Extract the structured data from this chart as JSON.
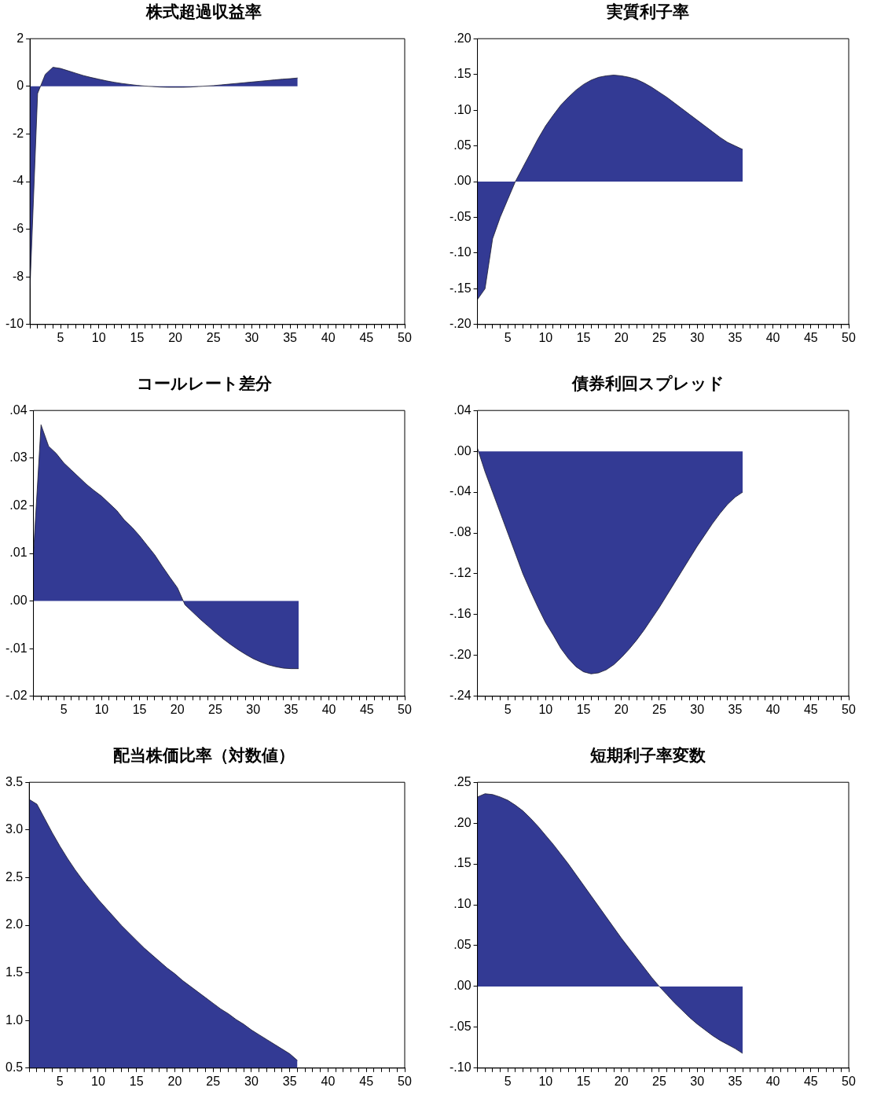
{
  "chart_data": [
    {
      "type": "area",
      "title": "株式超過収益率",
      "x": [
        1,
        2,
        3,
        4,
        5,
        6,
        7,
        8,
        9,
        10,
        11,
        12,
        13,
        14,
        15,
        16,
        17,
        18,
        19,
        20,
        21,
        22,
        23,
        24,
        25,
        26,
        27,
        28,
        29,
        30,
        31,
        32,
        33,
        34,
        35,
        36
      ],
      "series": [
        {
          "color": "#333a94",
          "values": [
            -8.5,
            -0.3,
            0.5,
            0.8,
            0.75,
            0.65,
            0.55,
            0.45,
            0.37,
            0.3,
            0.23,
            0.17,
            0.12,
            0.08,
            0.04,
            0.01,
            -0.01,
            -0.03,
            -0.04,
            -0.04,
            -0.04,
            -0.03,
            -0.01,
            0.01,
            0.03,
            0.06,
            0.09,
            0.12,
            0.15,
            0.18,
            0.21,
            0.24,
            0.27,
            0.3,
            0.32,
            0.35
          ]
        }
      ],
      "xlim": [
        1,
        50
      ],
      "xticks": [
        {
          "value": 1,
          "label": null
        },
        {
          "value": 2,
          "label": null
        },
        {
          "value": 3,
          "label": null
        },
        {
          "value": 4,
          "label": null
        },
        5,
        {
          "value": 6,
          "label": null
        },
        {
          "value": 7,
          "label": null
        },
        {
          "value": 8,
          "label": null
        },
        {
          "value": 9,
          "label": null
        },
        10,
        {
          "value": 11,
          "label": null
        },
        {
          "value": 12,
          "label": null
        },
        {
          "value": 13,
          "label": null
        },
        {
          "value": 14,
          "label": null
        },
        15,
        {
          "value": 16,
          "label": null
        },
        {
          "value": 17,
          "label": null
        },
        {
          "value": 18,
          "label": null
        },
        {
          "value": 19,
          "label": null
        },
        20,
        {
          "value": 21,
          "label": null
        },
        {
          "value": 22,
          "label": null
        },
        {
          "value": 23,
          "label": null
        },
        {
          "value": 24,
          "label": null
        },
        25,
        {
          "value": 26,
          "label": null
        },
        {
          "value": 27,
          "label": null
        },
        {
          "value": 28,
          "label": null
        },
        {
          "value": 29,
          "label": null
        },
        30,
        {
          "value": 31,
          "label": null
        },
        {
          "value": 32,
          "label": null
        },
        {
          "value": 33,
          "label": null
        },
        {
          "value": 34,
          "label": null
        },
        35,
        {
          "value": 36,
          "label": null
        },
        {
          "value": 37,
          "label": null
        },
        {
          "value": 38,
          "label": null
        },
        {
          "value": 39,
          "label": null
        },
        40,
        {
          "value": 41,
          "label": null
        },
        {
          "value": 42,
          "label": null
        },
        {
          "value": 43,
          "label": null
        },
        {
          "value": 44,
          "label": null
        },
        45,
        {
          "value": 46,
          "label": null
        },
        {
          "value": 47,
          "label": null
        },
        {
          "value": 48,
          "label": null
        },
        {
          "value": 49,
          "label": null
        },
        50
      ],
      "ylim": [
        -10,
        2
      ],
      "yticks": [
        -10,
        -8,
        -6,
        -4,
        -2,
        0,
        2
      ],
      "grid": false,
      "legend": false
    },
    {
      "type": "area",
      "title": "実質利子率",
      "x": [
        1,
        2,
        3,
        4,
        5,
        6,
        7,
        8,
        9,
        10,
        11,
        12,
        13,
        14,
        15,
        16,
        17,
        18,
        19,
        20,
        21,
        22,
        23,
        24,
        25,
        26,
        27,
        28,
        29,
        30,
        31,
        32,
        33,
        34,
        35,
        36
      ],
      "series": [
        {
          "color": "#333a94",
          "values": [
            -0.165,
            -0.15,
            -0.08,
            -0.05,
            -0.025,
            0.0,
            0.02,
            0.04,
            0.06,
            0.078,
            0.093,
            0.107,
            0.118,
            0.128,
            0.136,
            0.142,
            0.146,
            0.148,
            0.149,
            0.148,
            0.146,
            0.143,
            0.138,
            0.132,
            0.125,
            0.118,
            0.11,
            0.102,
            0.094,
            0.086,
            0.078,
            0.07,
            0.062,
            0.055,
            0.05,
            0.045
          ]
        }
      ],
      "xlim": [
        1,
        50
      ],
      "xticks": [
        {
          "value": 1,
          "label": null
        },
        {
          "value": 2,
          "label": null
        },
        {
          "value": 3,
          "label": null
        },
        {
          "value": 4,
          "label": null
        },
        5,
        {
          "value": 6,
          "label": null
        },
        {
          "value": 7,
          "label": null
        },
        {
          "value": 8,
          "label": null
        },
        {
          "value": 9,
          "label": null
        },
        10,
        {
          "value": 11,
          "label": null
        },
        {
          "value": 12,
          "label": null
        },
        {
          "value": 13,
          "label": null
        },
        {
          "value": 14,
          "label": null
        },
        15,
        {
          "value": 16,
          "label": null
        },
        {
          "value": 17,
          "label": null
        },
        {
          "value": 18,
          "label": null
        },
        {
          "value": 19,
          "label": null
        },
        20,
        {
          "value": 21,
          "label": null
        },
        {
          "value": 22,
          "label": null
        },
        {
          "value": 23,
          "label": null
        },
        {
          "value": 24,
          "label": null
        },
        25,
        {
          "value": 26,
          "label": null
        },
        {
          "value": 27,
          "label": null
        },
        {
          "value": 28,
          "label": null
        },
        {
          "value": 29,
          "label": null
        },
        30,
        {
          "value": 31,
          "label": null
        },
        {
          "value": 32,
          "label": null
        },
        {
          "value": 33,
          "label": null
        },
        {
          "value": 34,
          "label": null
        },
        35,
        {
          "value": 36,
          "label": null
        },
        {
          "value": 37,
          "label": null
        },
        {
          "value": 38,
          "label": null
        },
        {
          "value": 39,
          "label": null
        },
        40,
        {
          "value": 41,
          "label": null
        },
        {
          "value": 42,
          "label": null
        },
        {
          "value": 43,
          "label": null
        },
        {
          "value": 44,
          "label": null
        },
        45,
        {
          "value": 46,
          "label": null
        },
        {
          "value": 47,
          "label": null
        },
        {
          "value": 48,
          "label": null
        },
        {
          "value": 49,
          "label": null
        },
        50
      ],
      "ylim": [
        -0.2,
        0.2
      ],
      "yticks": [
        {
          "value": -0.2,
          "label": "-.20"
        },
        {
          "value": -0.15,
          "label": "-.15"
        },
        {
          "value": -0.1,
          "label": "-.10"
        },
        {
          "value": -0.05,
          "label": "-.05"
        },
        {
          "value": 0,
          "label": ".00"
        },
        {
          "value": 0.05,
          "label": ".05"
        },
        {
          "value": 0.1,
          "label": ".10"
        },
        {
          "value": 0.15,
          "label": ".15"
        },
        {
          "value": 0.2,
          "label": ".20"
        }
      ],
      "grid": false,
      "legend": false
    },
    {
      "type": "area",
      "title": "コールレート差分",
      "x": [
        1,
        2,
        3,
        4,
        5,
        6,
        7,
        8,
        9,
        10,
        11,
        12,
        13,
        14,
        15,
        16,
        17,
        18,
        19,
        20,
        21,
        22,
        23,
        24,
        25,
        26,
        27,
        28,
        29,
        30,
        31,
        32,
        33,
        34,
        35,
        36
      ],
      "series": [
        {
          "color": "#333a94",
          "values": [
            0.01,
            0.037,
            0.0325,
            0.031,
            0.029,
            0.0275,
            0.026,
            0.0245,
            0.0232,
            0.022,
            0.0205,
            0.019,
            0.017,
            0.0155,
            0.0137,
            0.0117,
            0.0097,
            0.0073,
            0.005,
            0.0028,
            -0.0008,
            -0.0023,
            -0.0038,
            -0.0052,
            -0.0066,
            -0.0079,
            -0.0091,
            -0.0102,
            -0.0112,
            -0.0121,
            -0.0128,
            -0.0134,
            -0.0138,
            -0.0141,
            -0.0142,
            -0.0142
          ]
        }
      ],
      "xlim": [
        1,
        50
      ],
      "xticks": [
        {
          "value": 1,
          "label": null
        },
        {
          "value": 2,
          "label": null
        },
        {
          "value": 3,
          "label": null
        },
        {
          "value": 4,
          "label": null
        },
        5,
        {
          "value": 6,
          "label": null
        },
        {
          "value": 7,
          "label": null
        },
        {
          "value": 8,
          "label": null
        },
        {
          "value": 9,
          "label": null
        },
        10,
        {
          "value": 11,
          "label": null
        },
        {
          "value": 12,
          "label": null
        },
        {
          "value": 13,
          "label": null
        },
        {
          "value": 14,
          "label": null
        },
        15,
        {
          "value": 16,
          "label": null
        },
        {
          "value": 17,
          "label": null
        },
        {
          "value": 18,
          "label": null
        },
        {
          "value": 19,
          "label": null
        },
        20,
        {
          "value": 21,
          "label": null
        },
        {
          "value": 22,
          "label": null
        },
        {
          "value": 23,
          "label": null
        },
        {
          "value": 24,
          "label": null
        },
        25,
        {
          "value": 26,
          "label": null
        },
        {
          "value": 27,
          "label": null
        },
        {
          "value": 28,
          "label": null
        },
        {
          "value": 29,
          "label": null
        },
        30,
        {
          "value": 31,
          "label": null
        },
        {
          "value": 32,
          "label": null
        },
        {
          "value": 33,
          "label": null
        },
        {
          "value": 34,
          "label": null
        },
        35,
        {
          "value": 36,
          "label": null
        },
        {
          "value": 37,
          "label": null
        },
        {
          "value": 38,
          "label": null
        },
        {
          "value": 39,
          "label": null
        },
        40,
        {
          "value": 41,
          "label": null
        },
        {
          "value": 42,
          "label": null
        },
        {
          "value": 43,
          "label": null
        },
        {
          "value": 44,
          "label": null
        },
        45,
        {
          "value": 46,
          "label": null
        },
        {
          "value": 47,
          "label": null
        },
        {
          "value": 48,
          "label": null
        },
        {
          "value": 49,
          "label": null
        },
        50
      ],
      "ylim": [
        -0.02,
        0.04
      ],
      "yticks": [
        {
          "value": -0.02,
          "label": "-.02"
        },
        {
          "value": -0.01,
          "label": "-.01"
        },
        {
          "value": 0,
          "label": ".00"
        },
        {
          "value": 0.01,
          "label": ".01"
        },
        {
          "value": 0.02,
          "label": ".02"
        },
        {
          "value": 0.03,
          "label": ".03"
        },
        {
          "value": 0.04,
          "label": ".04"
        }
      ],
      "grid": false,
      "legend": false
    },
    {
      "type": "area",
      "title": "債券利回スプレッド",
      "x": [
        1,
        2,
        3,
        4,
        5,
        6,
        7,
        8,
        9,
        10,
        11,
        12,
        13,
        14,
        15,
        16,
        17,
        18,
        19,
        20,
        21,
        22,
        23,
        24,
        25,
        26,
        27,
        28,
        29,
        30,
        31,
        32,
        33,
        34,
        35,
        36
      ],
      "series": [
        {
          "color": "#333a94",
          "values": [
            0.003,
            -0.02,
            -0.04,
            -0.06,
            -0.08,
            -0.1,
            -0.12,
            -0.137,
            -0.153,
            -0.168,
            -0.18,
            -0.193,
            -0.203,
            -0.211,
            -0.216,
            -0.218,
            -0.217,
            -0.214,
            -0.209,
            -0.202,
            -0.194,
            -0.185,
            -0.175,
            -0.164,
            -0.153,
            -0.141,
            -0.129,
            -0.117,
            -0.105,
            -0.093,
            -0.082,
            -0.071,
            -0.061,
            -0.052,
            -0.045,
            -0.04
          ]
        }
      ],
      "xlim": [
        1,
        50
      ],
      "xticks": [
        {
          "value": 1,
          "label": null
        },
        {
          "value": 2,
          "label": null
        },
        {
          "value": 3,
          "label": null
        },
        {
          "value": 4,
          "label": null
        },
        5,
        {
          "value": 6,
          "label": null
        },
        {
          "value": 7,
          "label": null
        },
        {
          "value": 8,
          "label": null
        },
        {
          "value": 9,
          "label": null
        },
        10,
        {
          "value": 11,
          "label": null
        },
        {
          "value": 12,
          "label": null
        },
        {
          "value": 13,
          "label": null
        },
        {
          "value": 14,
          "label": null
        },
        15,
        {
          "value": 16,
          "label": null
        },
        {
          "value": 17,
          "label": null
        },
        {
          "value": 18,
          "label": null
        },
        {
          "value": 19,
          "label": null
        },
        20,
        {
          "value": 21,
          "label": null
        },
        {
          "value": 22,
          "label": null
        },
        {
          "value": 23,
          "label": null
        },
        {
          "value": 24,
          "label": null
        },
        25,
        {
          "value": 26,
          "label": null
        },
        {
          "value": 27,
          "label": null
        },
        {
          "value": 28,
          "label": null
        },
        {
          "value": 29,
          "label": null
        },
        30,
        {
          "value": 31,
          "label": null
        },
        {
          "value": 32,
          "label": null
        },
        {
          "value": 33,
          "label": null
        },
        {
          "value": 34,
          "label": null
        },
        35,
        {
          "value": 36,
          "label": null
        },
        {
          "value": 37,
          "label": null
        },
        {
          "value": 38,
          "label": null
        },
        {
          "value": 39,
          "label": null
        },
        40,
        {
          "value": 41,
          "label": null
        },
        {
          "value": 42,
          "label": null
        },
        {
          "value": 43,
          "label": null
        },
        {
          "value": 44,
          "label": null
        },
        45,
        {
          "value": 46,
          "label": null
        },
        {
          "value": 47,
          "label": null
        },
        {
          "value": 48,
          "label": null
        },
        {
          "value": 49,
          "label": null
        },
        50
      ],
      "ylim": [
        -0.24,
        0.04
      ],
      "yticks": [
        {
          "value": -0.24,
          "label": "-.24"
        },
        {
          "value": -0.2,
          "label": "-.20"
        },
        {
          "value": -0.16,
          "label": "-.16"
        },
        {
          "value": -0.12,
          "label": "-.12"
        },
        {
          "value": -0.08,
          "label": "-.08"
        },
        {
          "value": -0.04,
          "label": "-.04"
        },
        {
          "value": 0,
          "label": ".00"
        },
        {
          "value": 0.04,
          "label": ".04"
        }
      ],
      "grid": false,
      "legend": false
    },
    {
      "type": "area",
      "title": "配当株価比率（対数値）",
      "x": [
        1,
        2,
        3,
        4,
        5,
        6,
        7,
        8,
        9,
        10,
        11,
        12,
        13,
        14,
        15,
        16,
        17,
        18,
        19,
        20,
        21,
        22,
        23,
        24,
        25,
        26,
        27,
        28,
        29,
        30,
        31,
        32,
        33,
        34,
        35,
        36
      ],
      "series": [
        {
          "color": "#333a94",
          "values": [
            3.32,
            3.27,
            3.12,
            2.97,
            2.83,
            2.7,
            2.58,
            2.47,
            2.37,
            2.27,
            2.18,
            2.09,
            2.0,
            1.92,
            1.84,
            1.76,
            1.69,
            1.62,
            1.55,
            1.49,
            1.42,
            1.36,
            1.3,
            1.24,
            1.18,
            1.12,
            1.07,
            1.01,
            0.96,
            0.9,
            0.85,
            0.8,
            0.75,
            0.7,
            0.65,
            0.58
          ]
        }
      ],
      "xlim": [
        1,
        50
      ],
      "xticks": [
        {
          "value": 1,
          "label": null
        },
        {
          "value": 2,
          "label": null
        },
        {
          "value": 3,
          "label": null
        },
        {
          "value": 4,
          "label": null
        },
        5,
        {
          "value": 6,
          "label": null
        },
        {
          "value": 7,
          "label": null
        },
        {
          "value": 8,
          "label": null
        },
        {
          "value": 9,
          "label": null
        },
        10,
        {
          "value": 11,
          "label": null
        },
        {
          "value": 12,
          "label": null
        },
        {
          "value": 13,
          "label": null
        },
        {
          "value": 14,
          "label": null
        },
        15,
        {
          "value": 16,
          "label": null
        },
        {
          "value": 17,
          "label": null
        },
        {
          "value": 18,
          "label": null
        },
        {
          "value": 19,
          "label": null
        },
        20,
        {
          "value": 21,
          "label": null
        },
        {
          "value": 22,
          "label": null
        },
        {
          "value": 23,
          "label": null
        },
        {
          "value": 24,
          "label": null
        },
        25,
        {
          "value": 26,
          "label": null
        },
        {
          "value": 27,
          "label": null
        },
        {
          "value": 28,
          "label": null
        },
        {
          "value": 29,
          "label": null
        },
        30,
        {
          "value": 31,
          "label": null
        },
        {
          "value": 32,
          "label": null
        },
        {
          "value": 33,
          "label": null
        },
        {
          "value": 34,
          "label": null
        },
        35,
        {
          "value": 36,
          "label": null
        },
        {
          "value": 37,
          "label": null
        },
        {
          "value": 38,
          "label": null
        },
        {
          "value": 39,
          "label": null
        },
        40,
        {
          "value": 41,
          "label": null
        },
        {
          "value": 42,
          "label": null
        },
        {
          "value": 43,
          "label": null
        },
        {
          "value": 44,
          "label": null
        },
        45,
        {
          "value": 46,
          "label": null
        },
        {
          "value": 47,
          "label": null
        },
        {
          "value": 48,
          "label": null
        },
        {
          "value": 49,
          "label": null
        },
        50
      ],
      "ylim": [
        0.5,
        3.5
      ],
      "yticks": [
        0.5,
        {
          "value": 1,
          "label": "1.0"
        },
        1.5,
        {
          "value": 2,
          "label": "2.0"
        },
        2.5,
        {
          "value": 3,
          "label": "3.0"
        },
        3.5
      ],
      "grid": false,
      "legend": false
    },
    {
      "type": "area",
      "title": "短期利子率変数",
      "x": [
        1,
        2,
        3,
        4,
        5,
        6,
        7,
        8,
        9,
        10,
        11,
        12,
        13,
        14,
        15,
        16,
        17,
        18,
        19,
        20,
        21,
        22,
        23,
        24,
        25,
        26,
        27,
        28,
        29,
        30,
        31,
        32,
        33,
        34,
        35,
        36
      ],
      "series": [
        {
          "color": "#333a94",
          "values": [
            0.232,
            0.236,
            0.235,
            0.232,
            0.228,
            0.222,
            0.215,
            0.206,
            0.196,
            0.185,
            0.174,
            0.162,
            0.15,
            0.137,
            0.124,
            0.111,
            0.098,
            0.085,
            0.072,
            0.059,
            0.047,
            0.035,
            0.023,
            0.011,
            0.0,
            -0.01,
            -0.02,
            -0.029,
            -0.038,
            -0.046,
            -0.053,
            -0.06,
            -0.066,
            -0.071,
            -0.076,
            -0.082
          ]
        }
      ],
      "xlim": [
        1,
        50
      ],
      "xticks": [
        {
          "value": 1,
          "label": null
        },
        {
          "value": 2,
          "label": null
        },
        {
          "value": 3,
          "label": null
        },
        {
          "value": 4,
          "label": null
        },
        5,
        {
          "value": 6,
          "label": null
        },
        {
          "value": 7,
          "label": null
        },
        {
          "value": 8,
          "label": null
        },
        {
          "value": 9,
          "label": null
        },
        10,
        {
          "value": 11,
          "label": null
        },
        {
          "value": 12,
          "label": null
        },
        {
          "value": 13,
          "label": null
        },
        {
          "value": 14,
          "label": null
        },
        15,
        {
          "value": 16,
          "label": null
        },
        {
          "value": 17,
          "label": null
        },
        {
          "value": 18,
          "label": null
        },
        {
          "value": 19,
          "label": null
        },
        20,
        {
          "value": 21,
          "label": null
        },
        {
          "value": 22,
          "label": null
        },
        {
          "value": 23,
          "label": null
        },
        {
          "value": 24,
          "label": null
        },
        25,
        {
          "value": 26,
          "label": null
        },
        {
          "value": 27,
          "label": null
        },
        {
          "value": 28,
          "label": null
        },
        {
          "value": 29,
          "label": null
        },
        30,
        {
          "value": 31,
          "label": null
        },
        {
          "value": 32,
          "label": null
        },
        {
          "value": 33,
          "label": null
        },
        {
          "value": 34,
          "label": null
        },
        35,
        {
          "value": 36,
          "label": null
        },
        {
          "value": 37,
          "label": null
        },
        {
          "value": 38,
          "label": null
        },
        {
          "value": 39,
          "label": null
        },
        40,
        {
          "value": 41,
          "label": null
        },
        {
          "value": 42,
          "label": null
        },
        {
          "value": 43,
          "label": null
        },
        {
          "value": 44,
          "label": null
        },
        45,
        {
          "value": 46,
          "label": null
        },
        {
          "value": 47,
          "label": null
        },
        {
          "value": 48,
          "label": null
        },
        {
          "value": 49,
          "label": null
        },
        50
      ],
      "ylim": [
        -0.1,
        0.25
      ],
      "yticks": [
        {
          "value": -0.1,
          "label": "-.10"
        },
        {
          "value": -0.05,
          "label": "-.05"
        },
        {
          "value": 0,
          "label": ".00"
        },
        {
          "value": 0.05,
          "label": ".05"
        },
        {
          "value": 0.1,
          "label": ".10"
        },
        {
          "value": 0.15,
          "label": ".15"
        },
        {
          "value": 0.2,
          "label": ".20"
        },
        {
          "value": 0.25,
          "label": ".25"
        }
      ],
      "grid": false,
      "legend": false
    }
  ]
}
